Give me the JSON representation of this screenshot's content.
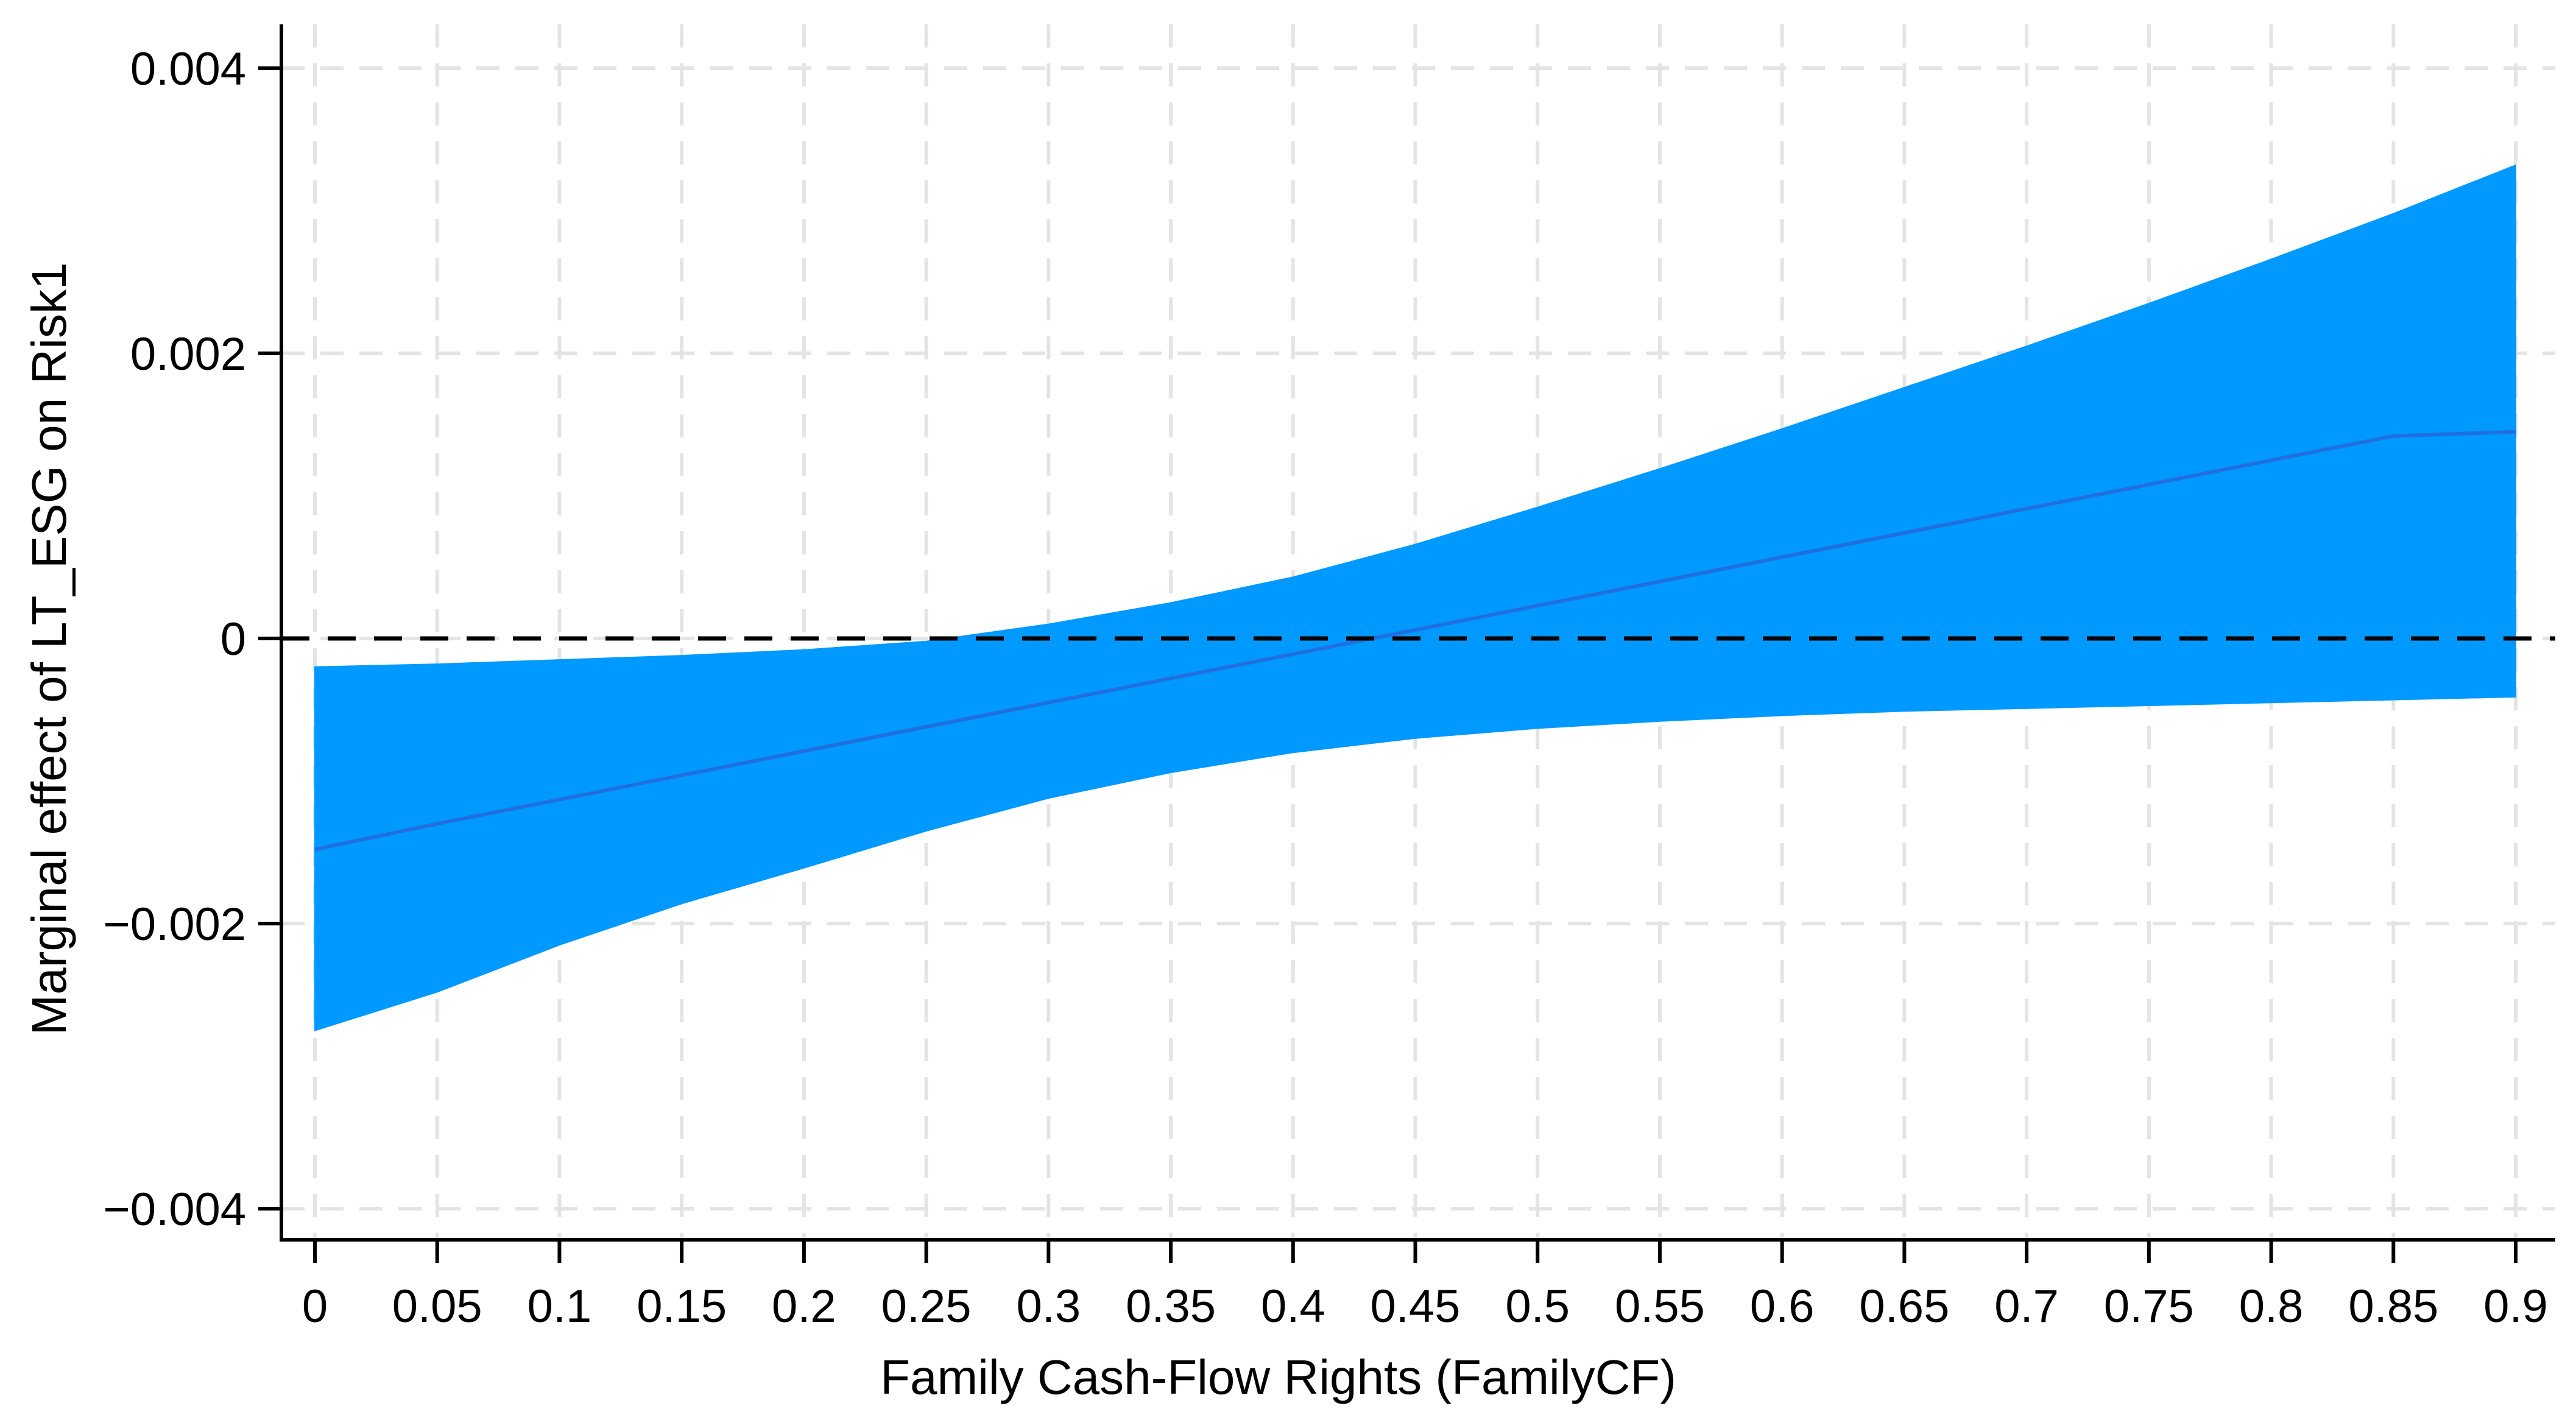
{
  "chart_data": {
    "type": "area",
    "title": "",
    "xlabel": "Family Cash-Flow Rights (FamilyCF)",
    "ylabel": "Marginal effect of LT_ESG on Risk1",
    "xlim": [
      0,
      0.9
    ],
    "ylim": [
      -0.004,
      0.004
    ],
    "x_ticks": [
      0,
      0.05,
      0.1,
      0.15,
      0.2,
      0.25,
      0.3,
      0.35,
      0.4,
      0.45,
      0.5,
      0.55,
      0.6,
      0.65,
      0.7,
      0.75,
      0.8,
      0.85,
      0.9
    ],
    "x_tick_labels": [
      "0",
      "0.05",
      "0.1",
      "0.15",
      "0.2",
      "0.25",
      "0.3",
      "0.35",
      "0.4",
      "0.45",
      "0.5",
      "0.55",
      "0.6",
      "0.65",
      "0.7",
      "0.75",
      "0.8",
      "0.85",
      "0.9"
    ],
    "y_ticks": [
      0.004,
      0.002,
      0,
      -0.002,
      -0.004
    ],
    "y_tick_labels": [
      "0.004",
      "0.002",
      "0",
      "−0.002",
      "−0.004"
    ],
    "grid": true,
    "reference_line": {
      "y": 0,
      "style": "dashed"
    },
    "x": [
      0,
      0.05,
      0.1,
      0.15,
      0.2,
      0.25,
      0.3,
      0.35,
      0.4,
      0.45,
      0.5,
      0.55,
      0.6,
      0.65,
      0.7,
      0.75,
      0.8,
      0.85,
      0.9
    ],
    "estimate": [
      -0.00148,
      -0.0013,
      -0.00113,
      -0.00096,
      -0.00079,
      -0.00062,
      -0.00045,
      -0.00028,
      -0.00011,
      6e-05,
      0.00023,
      0.0004,
      0.00057,
      0.00074,
      0.00091,
      0.00108,
      0.00125,
      0.00142,
      0.00145
    ],
    "ci_upper": [
      -0.0002,
      -0.00018,
      -0.00015,
      -0.00012,
      -8e-05,
      -2e-05,
      0.0001,
      0.00025,
      0.00043,
      0.00066,
      0.00092,
      0.00119,
      0.00147,
      0.00176,
      0.00205,
      0.00235,
      0.00266,
      0.00298,
      0.00332
    ],
    "ci_lower": [
      -0.00275,
      -0.00248,
      -0.00215,
      -0.00186,
      -0.00161,
      -0.00135,
      -0.00112,
      -0.00094,
      -0.0008,
      -0.0007,
      -0.00063,
      -0.00058,
      -0.00054,
      -0.00051,
      -0.00049,
      -0.00047,
      -0.00045,
      -0.00043,
      -0.00041
    ],
    "band_color": "#0099ff",
    "line_color": "#1f6fe0",
    "background_color": "#ffffff"
  }
}
